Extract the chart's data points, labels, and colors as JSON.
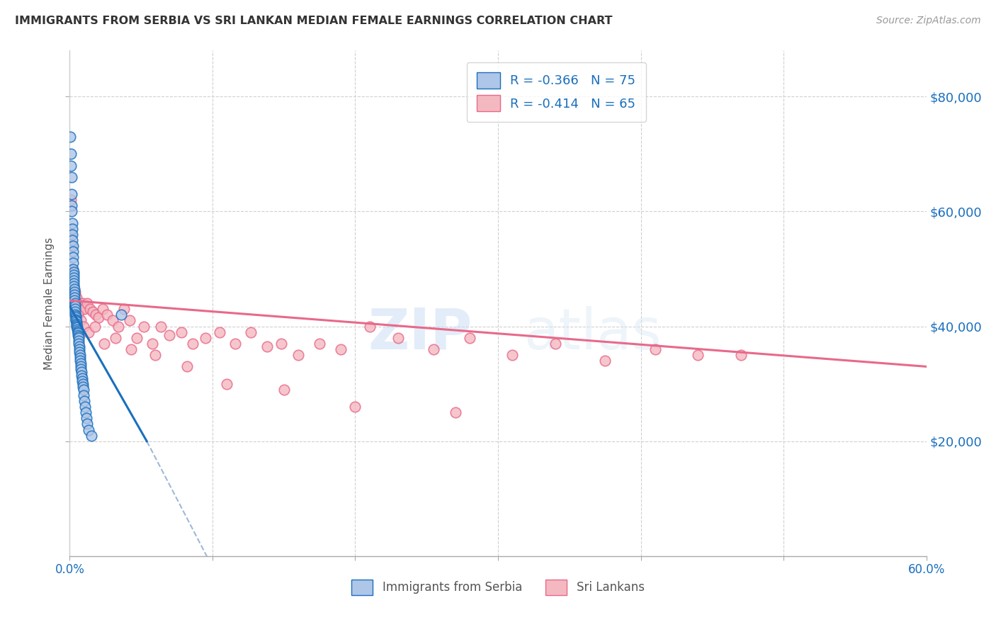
{
  "title": "IMMIGRANTS FROM SERBIA VS SRI LANKAN MEDIAN FEMALE EARNINGS CORRELATION CHART",
  "source": "Source: ZipAtlas.com",
  "ylabel": "Median Female Earnings",
  "ytick_labels": [
    "$20,000",
    "$40,000",
    "$60,000",
    "$80,000"
  ],
  "ytick_values": [
    20000,
    40000,
    60000,
    80000
  ],
  "ymin": 0,
  "ymax": 88000,
  "xmin": 0.0,
  "xmax": 0.6,
  "color_serbia": "#aec6e8",
  "color_srilanka": "#f4b8c1",
  "color_line_serbia": "#1a6fbd",
  "color_line_srilanka": "#e8698a",
  "color_dashed": "#a0b8d8",
  "watermark_zip": "ZIP",
  "watermark_atlas": "atlas",
  "serbia_x": [
    0.0005,
    0.0008,
    0.001,
    0.0012,
    0.0013,
    0.0015,
    0.0015,
    0.0018,
    0.0019,
    0.002,
    0.002,
    0.0022,
    0.0023,
    0.0023,
    0.0025,
    0.0025,
    0.0027,
    0.0028,
    0.0028,
    0.003,
    0.003,
    0.003,
    0.0032,
    0.0033,
    0.0033,
    0.0035,
    0.0035,
    0.0036,
    0.0038,
    0.0038,
    0.004,
    0.004,
    0.0042,
    0.0043,
    0.0045,
    0.0045,
    0.0047,
    0.0048,
    0.005,
    0.005,
    0.0052,
    0.0053,
    0.0055,
    0.0055,
    0.0057,
    0.0058,
    0.006,
    0.006,
    0.0062,
    0.0063,
    0.0065,
    0.0067,
    0.0068,
    0.007,
    0.0072,
    0.0073,
    0.0075,
    0.0075,
    0.0078,
    0.008,
    0.0082,
    0.0085,
    0.0088,
    0.009,
    0.0093,
    0.0095,
    0.0098,
    0.01,
    0.0105,
    0.011,
    0.0115,
    0.012,
    0.013,
    0.015,
    0.036
  ],
  "serbia_y": [
    73000,
    70000,
    68000,
    66000,
    63000,
    61000,
    60000,
    58000,
    57000,
    56000,
    55000,
    54000,
    53000,
    52000,
    51000,
    50000,
    49500,
    49000,
    48500,
    48000,
    47500,
    47000,
    46500,
    46000,
    45500,
    45000,
    44500,
    44000,
    43500,
    43000,
    42500,
    42000,
    41800,
    41500,
    41200,
    41000,
    40800,
    40500,
    40200,
    40000,
    39800,
    39500,
    39200,
    39000,
    38800,
    38500,
    38200,
    38000,
    37500,
    37000,
    36500,
    36000,
    35500,
    35000,
    34500,
    34000,
    33500,
    33000,
    32500,
    32000,
    31500,
    31000,
    30500,
    30000,
    29500,
    29000,
    28000,
    27000,
    26000,
    25000,
    24000,
    23000,
    22000,
    21000,
    42000
  ],
  "srilanka_x": [
    0.0008,
    0.001,
    0.0015,
    0.002,
    0.0025,
    0.003,
    0.004,
    0.005,
    0.006,
    0.007,
    0.008,
    0.009,
    0.01,
    0.012,
    0.014,
    0.016,
    0.018,
    0.02,
    0.023,
    0.026,
    0.03,
    0.034,
    0.038,
    0.042,
    0.047,
    0.052,
    0.058,
    0.064,
    0.07,
    0.078,
    0.086,
    0.095,
    0.105,
    0.116,
    0.127,
    0.138,
    0.148,
    0.16,
    0.175,
    0.19,
    0.21,
    0.23,
    0.255,
    0.28,
    0.31,
    0.34,
    0.375,
    0.41,
    0.44,
    0.47,
    0.0035,
    0.0055,
    0.0075,
    0.0095,
    0.013,
    0.0175,
    0.024,
    0.032,
    0.043,
    0.06,
    0.082,
    0.11,
    0.15,
    0.2,
    0.27
  ],
  "srilanka_y": [
    62000,
    56000,
    54000,
    50000,
    48000,
    47000,
    46000,
    45000,
    44000,
    43500,
    43000,
    44000,
    43000,
    44000,
    43000,
    42500,
    42000,
    41500,
    43000,
    42000,
    41000,
    40000,
    43000,
    41000,
    38000,
    40000,
    37000,
    40000,
    38500,
    39000,
    37000,
    38000,
    39000,
    37000,
    39000,
    36500,
    37000,
    35000,
    37000,
    36000,
    40000,
    38000,
    36000,
    38000,
    35000,
    37000,
    34000,
    36000,
    35000,
    35000,
    44000,
    42000,
    41000,
    40000,
    39000,
    40000,
    37000,
    38000,
    36000,
    35000,
    33000,
    30000,
    29000,
    26000,
    25000
  ],
  "serbia_line_x": [
    0.0,
    0.054
  ],
  "serbia_line_y": [
    43500,
    20000
  ],
  "dashed_line_x": [
    0.054,
    0.18
  ],
  "dashed_line_y": [
    20000,
    -40000
  ],
  "srilanka_line_x": [
    0.0,
    0.6
  ],
  "srilanka_line_y": [
    44500,
    33000
  ]
}
